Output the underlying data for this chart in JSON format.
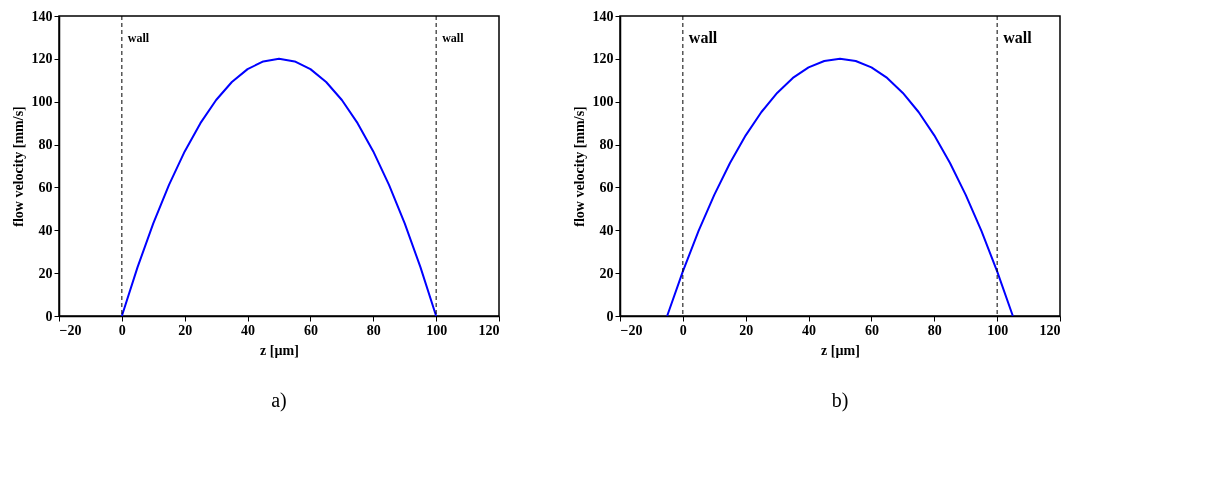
{
  "chart_data": [
    {
      "type": "line",
      "xlabel": "z [µm]",
      "ylabel": "flow velocity [mm/s]",
      "xlim": [
        -20,
        120
      ],
      "ylim": [
        0,
        140
      ],
      "xticks": [
        -20,
        0,
        20,
        40,
        60,
        80,
        100,
        120
      ],
      "yticks": [
        0,
        20,
        40,
        60,
        80,
        100,
        120,
        140
      ],
      "grid": false,
      "marker": "none",
      "line_style": "solid",
      "series": [
        {
          "color": "#0000ff",
          "x": [
            0,
            5,
            10,
            15,
            20,
            25,
            30,
            35,
            40,
            45,
            50,
            55,
            60,
            65,
            70,
            75,
            80,
            85,
            90,
            95,
            100
          ],
          "values": [
            0,
            22.8,
            43.2,
            61.2,
            76.8,
            90,
            100.8,
            109.2,
            115.2,
            118.8,
            120,
            118.8,
            115.2,
            109.2,
            100.8,
            90,
            76.8,
            61.2,
            43.2,
            22.8,
            0
          ]
        }
      ],
      "ref_lines": [
        {
          "axis": "x",
          "value": 0,
          "label": "wall",
          "color": "#000000",
          "line_style": "dashed"
        },
        {
          "axis": "x",
          "value": 100,
          "label": "wall",
          "color": "#000000",
          "line_style": "dashed"
        }
      ],
      "annotations": [
        "a)"
      ]
    },
    {
      "type": "line",
      "xlabel": "z [µm]",
      "ylabel": "flow velocity [mm/s]",
      "xlim": [
        -20,
        120
      ],
      "ylim": [
        0,
        140
      ],
      "xticks": [
        -20,
        0,
        20,
        40,
        60,
        80,
        100,
        120
      ],
      "yticks": [
        0,
        20,
        40,
        60,
        80,
        100,
        120,
        140
      ],
      "grid": false,
      "marker": "none",
      "line_style": "solid",
      "series": [
        {
          "color": "#0000ff",
          "x": [
            -5,
            0,
            5,
            10,
            15,
            20,
            25,
            30,
            35,
            40,
            45,
            50,
            55,
            60,
            65,
            70,
            75,
            80,
            85,
            90,
            95,
            100,
            105
          ],
          "values": [
            0,
            20.8,
            39.7,
            56.5,
            71.4,
            84.3,
            95.2,
            104.1,
            111.1,
            116.0,
            119.0,
            120,
            119.0,
            116.0,
            111.1,
            104.1,
            95.2,
            84.3,
            71.4,
            56.5,
            39.7,
            20.8,
            0
          ]
        }
      ],
      "ref_lines": [
        {
          "axis": "x",
          "value": 0,
          "label": "wall",
          "color": "#000000",
          "line_style": "dashed"
        },
        {
          "axis": "x",
          "value": 100,
          "label": "wall",
          "color": "#000000",
          "line_style": "dashed"
        }
      ],
      "annotations": [
        "b)"
      ]
    }
  ]
}
